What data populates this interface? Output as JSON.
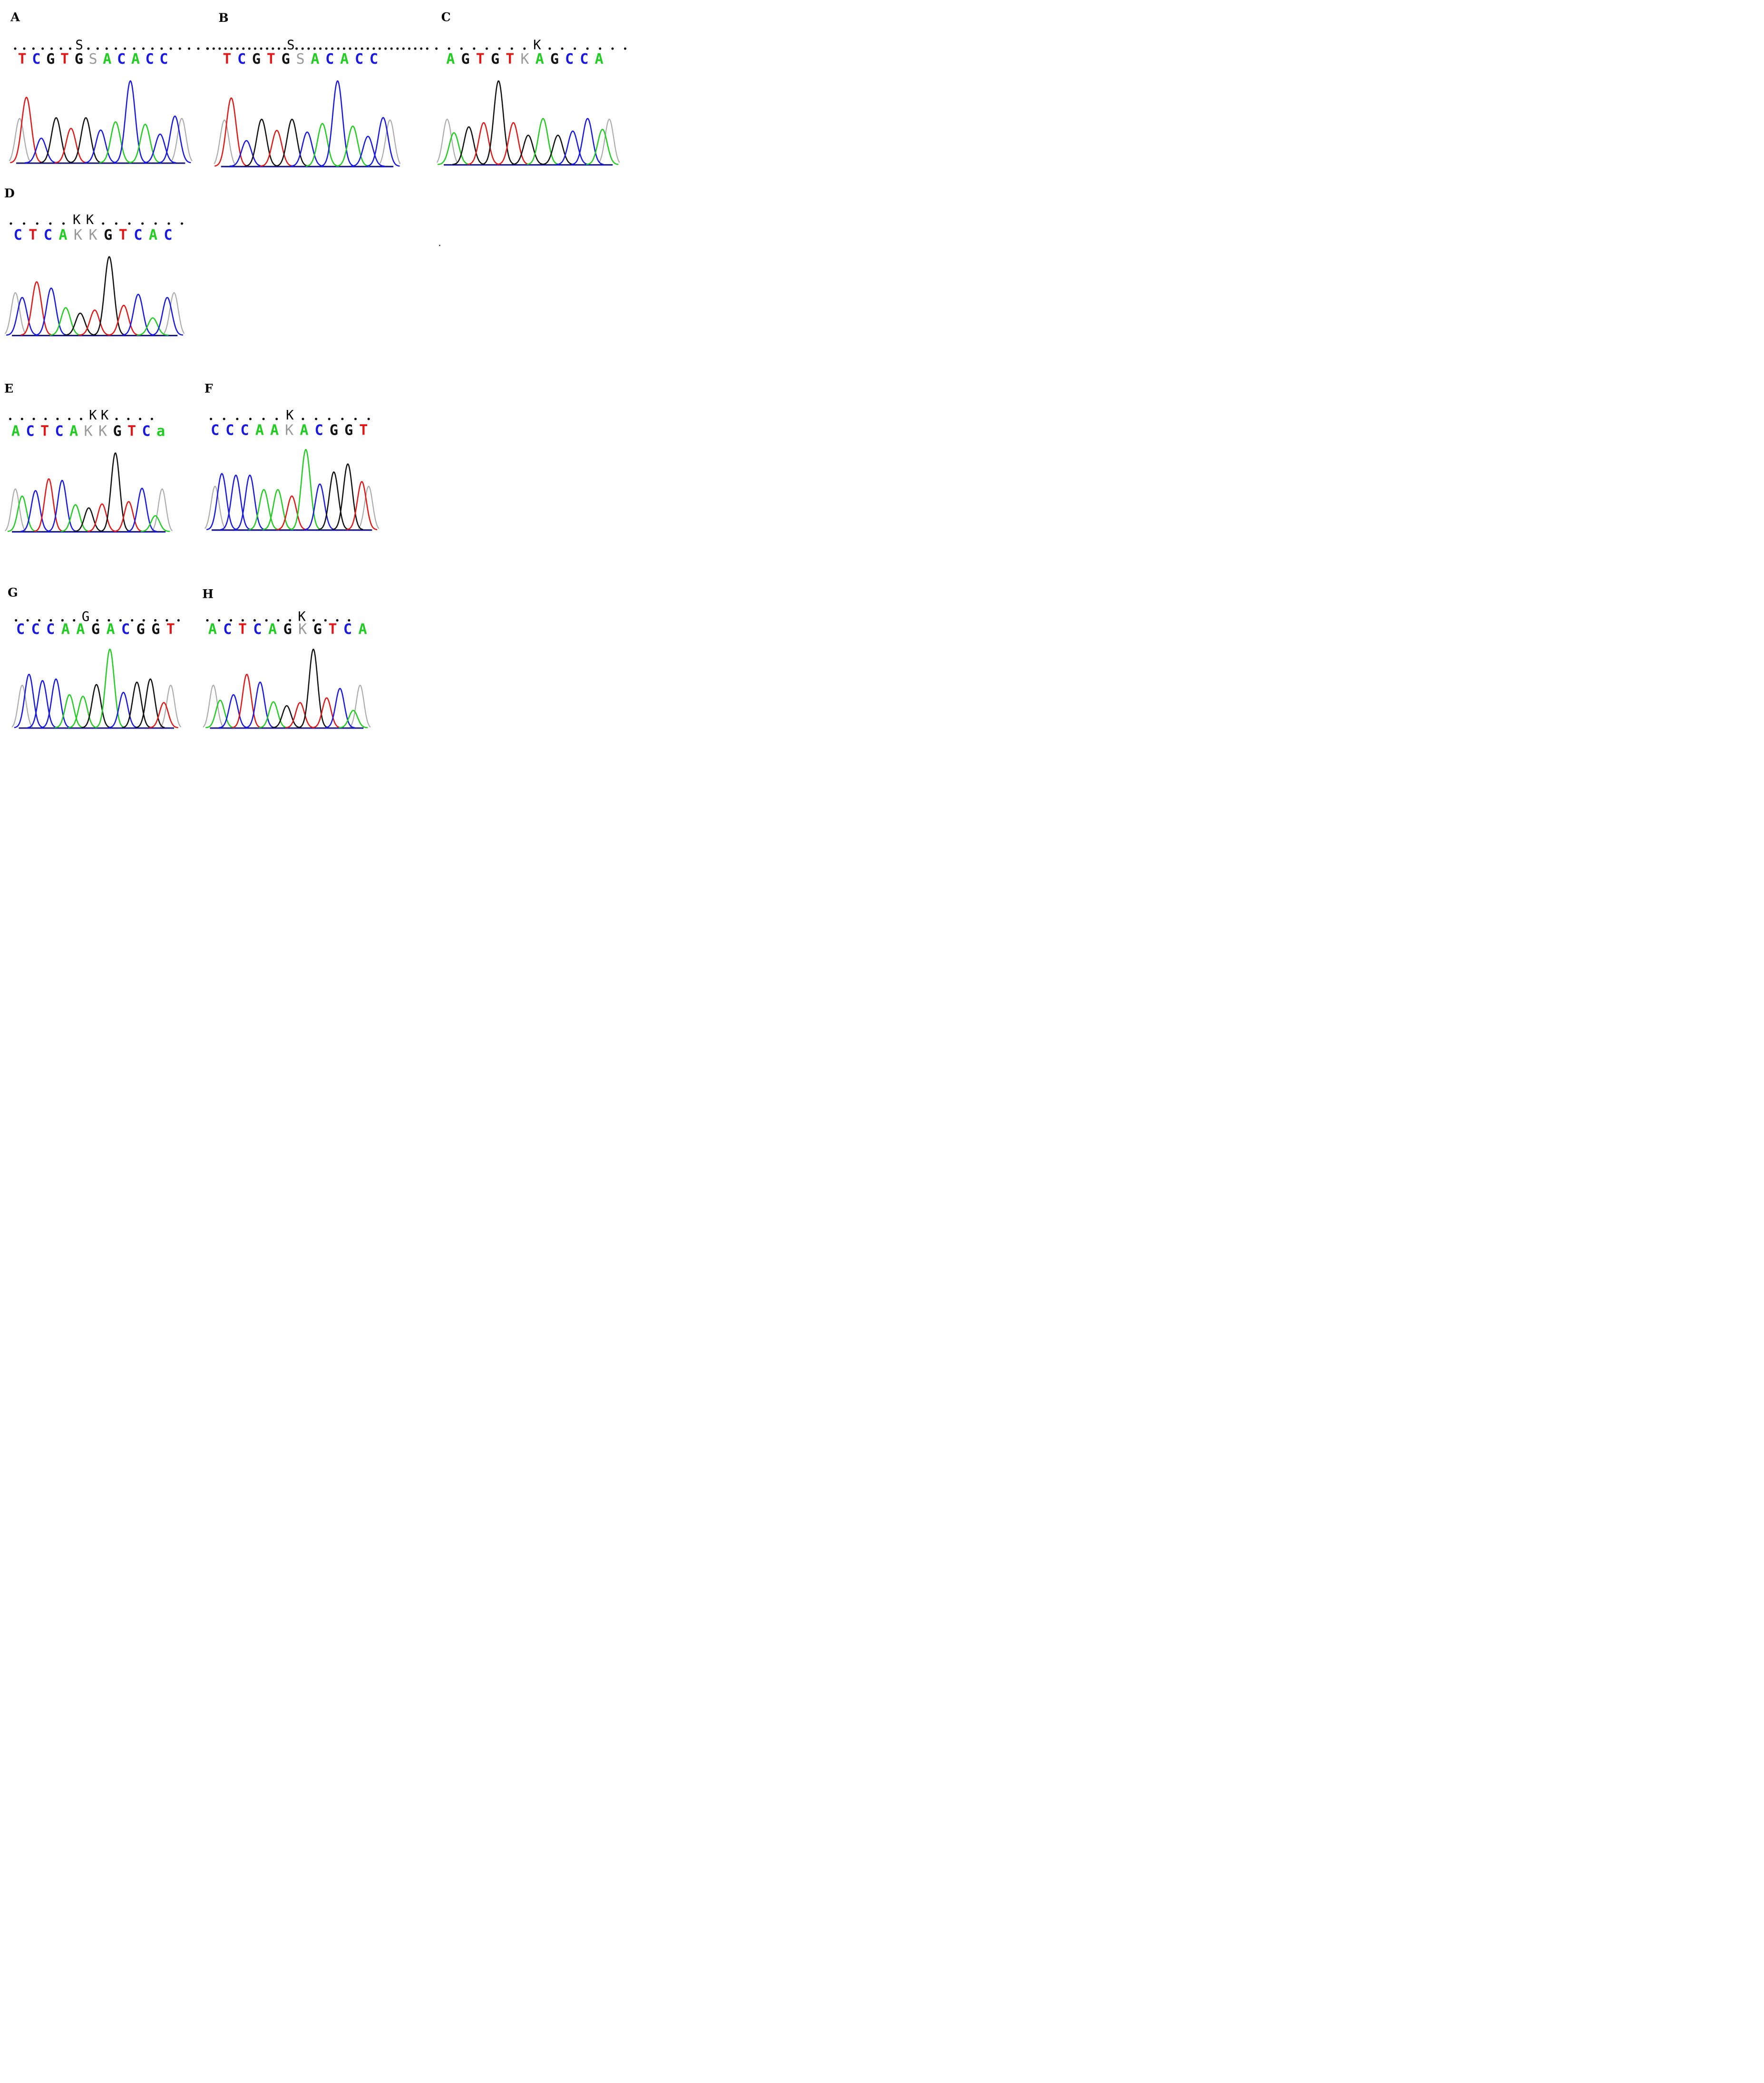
{
  "colors": {
    "A": "#22cc22",
    "C": "#1818e0",
    "G": "#111111",
    "T": "#e01818",
    "ambiguous": "#999999",
    "edge": "#aaaaaa"
  },
  "panels": [
    {
      "id": "A",
      "letter": "A",
      "consensus": ".......S..............",
      "sequence": "TCGTGSACACC",
      "peaks": [
        {
          "b": "T",
          "h": 0.8
        },
        {
          "b": "C",
          "h": 0.3
        },
        {
          "b": "G",
          "h": 0.55
        },
        {
          "b": "T",
          "h": 0.42
        },
        {
          "b": "G",
          "h": 0.55
        },
        {
          "b": "C",
          "h": 0.4
        },
        {
          "b": "A",
          "h": 0.5
        },
        {
          "b": "C",
          "h": 1.0
        },
        {
          "b": "A",
          "h": 0.47
        },
        {
          "b": "C",
          "h": 0.35
        },
        {
          "b": "C",
          "h": 0.57
        }
      ]
    },
    {
      "id": "B",
      "letter": "B",
      "consensus": "..............S.......................",
      "sequence": "TCGTGSACACC",
      "peaks": [
        {
          "b": "T",
          "h": 0.8
        },
        {
          "b": "C",
          "h": 0.3
        },
        {
          "b": "G",
          "h": 0.55
        },
        {
          "b": "T",
          "h": 0.42
        },
        {
          "b": "G",
          "h": 0.55
        },
        {
          "b": "C",
          "h": 0.4
        },
        {
          "b": "A",
          "h": 0.5
        },
        {
          "b": "C",
          "h": 1.0
        },
        {
          "b": "A",
          "h": 0.47
        },
        {
          "b": "C",
          "h": 0.35
        },
        {
          "b": "C",
          "h": 0.57
        }
      ]
    },
    {
      "id": "C",
      "letter": "C",
      "consensus": "........K.......",
      "sequence": "AGTGTKAGCCA",
      "peaks": [
        {
          "b": "A",
          "h": 0.38
        },
        {
          "b": "G",
          "h": 0.45
        },
        {
          "b": "T",
          "h": 0.5
        },
        {
          "b": "G",
          "h": 1.0
        },
        {
          "b": "T",
          "h": 0.5
        },
        {
          "b": "G",
          "h": 0.35
        },
        {
          "b": "A",
          "h": 0.55
        },
        {
          "b": "G",
          "h": 0.35
        },
        {
          "b": "C",
          "h": 0.4
        },
        {
          "b": "C",
          "h": 0.55
        },
        {
          "b": "A",
          "h": 0.42
        }
      ]
    },
    {
      "id": "D",
      "letter": "D",
      "consensus": ".....KK.......",
      "sequence": "CTCAKKGTCAC",
      "peaks": [
        {
          "b": "C",
          "h": 0.48
        },
        {
          "b": "T",
          "h": 0.68
        },
        {
          "b": "C",
          "h": 0.6
        },
        {
          "b": "A",
          "h": 0.35
        },
        {
          "b": "G",
          "h": 0.28
        },
        {
          "b": "T",
          "h": 0.32
        },
        {
          "b": "G",
          "h": 1.0
        },
        {
          "b": "T",
          "h": 0.38
        },
        {
          "b": "C",
          "h": 0.52
        },
        {
          "b": "A",
          "h": 0.22
        },
        {
          "b": "C",
          "h": 0.48
        }
      ]
    },
    {
      "id": "E",
      "letter": "E",
      "consensus": ".......KK....",
      "sequence": "ACTCAKKGTCa",
      "peaks": [
        {
          "b": "A",
          "h": 0.45
        },
        {
          "b": "C",
          "h": 0.52
        },
        {
          "b": "T",
          "h": 0.67
        },
        {
          "b": "C",
          "h": 0.65
        },
        {
          "b": "A",
          "h": 0.34
        },
        {
          "b": "G",
          "h": 0.3
        },
        {
          "b": "T",
          "h": 0.35
        },
        {
          "b": "G",
          "h": 1.0
        },
        {
          "b": "T",
          "h": 0.38
        },
        {
          "b": "C",
          "h": 0.55
        },
        {
          "b": "A",
          "h": 0.2
        }
      ]
    },
    {
      "id": "F",
      "letter": "F",
      "consensus": "......K......",
      "sequence": "CCCAAKACGGT",
      "peaks": [
        {
          "b": "C",
          "h": 0.7
        },
        {
          "b": "C",
          "h": 0.68
        },
        {
          "b": "C",
          "h": 0.68
        },
        {
          "b": "A",
          "h": 0.5
        },
        {
          "b": "A",
          "h": 0.5
        },
        {
          "b": "T",
          "h": 0.42
        },
        {
          "b": "A",
          "h": 1.0
        },
        {
          "b": "C",
          "h": 0.57
        },
        {
          "b": "G",
          "h": 0.72
        },
        {
          "b": "G",
          "h": 0.82
        },
        {
          "b": "T",
          "h": 0.6
        }
      ]
    },
    {
      "id": "G",
      "letter": "G",
      "consensus": "......G........",
      "sequence": "CCCAAGACGGT",
      "peaks": [
        {
          "b": "C",
          "h": 0.68
        },
        {
          "b": "C",
          "h": 0.6
        },
        {
          "b": "C",
          "h": 0.62
        },
        {
          "b": "A",
          "h": 0.42
        },
        {
          "b": "A",
          "h": 0.4
        },
        {
          "b": "G",
          "h": 0.55
        },
        {
          "b": "A",
          "h": 1.0
        },
        {
          "b": "C",
          "h": 0.45
        },
        {
          "b": "G",
          "h": 0.58
        },
        {
          "b": "G",
          "h": 0.62
        },
        {
          "b": "T",
          "h": 0.32
        }
      ]
    },
    {
      "id": "H",
      "letter": "H",
      "consensus": "........K....",
      "sequence": "ACTCAGKGTCA",
      "peaks": [
        {
          "b": "A",
          "h": 0.35
        },
        {
          "b": "C",
          "h": 0.42
        },
        {
          "b": "T",
          "h": 0.68
        },
        {
          "b": "C",
          "h": 0.58
        },
        {
          "b": "A",
          "h": 0.33
        },
        {
          "b": "G",
          "h": 0.28
        },
        {
          "b": "T",
          "h": 0.32
        },
        {
          "b": "G",
          "h": 1.0
        },
        {
          "b": "T",
          "h": 0.38
        },
        {
          "b": "C",
          "h": 0.5
        },
        {
          "b": "A",
          "h": 0.22
        }
      ]
    }
  ]
}
